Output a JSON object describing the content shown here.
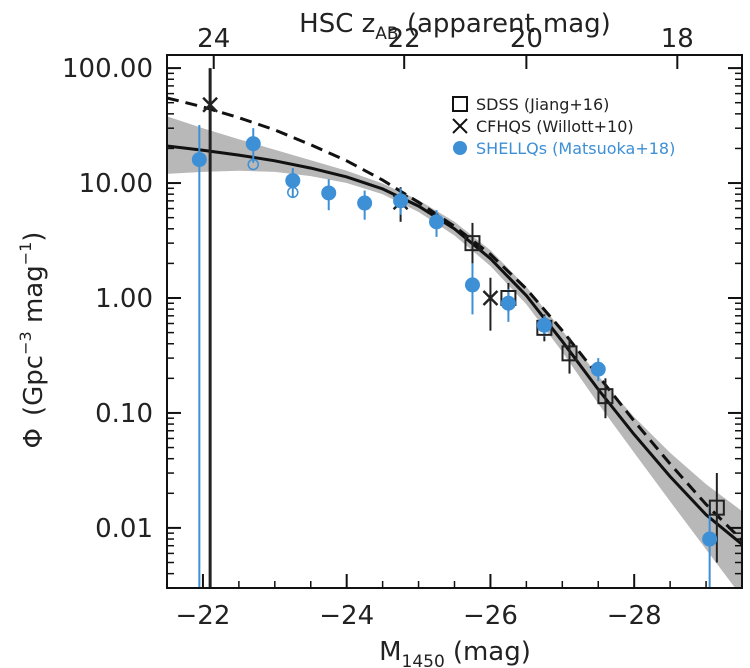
{
  "chart_data": {
    "type": "scatter",
    "x_reversed": true,
    "y_scale": "log",
    "xlim": [
      -21.5,
      -29.5
    ],
    "ylim": [
      0.003,
      130
    ],
    "xlabel_main": "M",
    "xlabel_sub": "1450",
    "xlabel_unit": "(mag)",
    "ylabel_symbol": "Φ",
    "ylabel_unit": "(Gpc",
    "ylabel_exp1": "−3",
    "ylabel_mid": " mag",
    "ylabel_exp2": "−1",
    "ylabel_close": ")",
    "top_axis_label_pre": "HSC z",
    "top_axis_label_sub": "AB",
    "top_axis_label_post": " (apparent mag)",
    "x_ticks": [
      {
        "value": -22,
        "label": "−22"
      },
      {
        "value": -24,
        "label": "−24"
      },
      {
        "value": -26,
        "label": "−26"
      },
      {
        "value": -28,
        "label": "−28"
      }
    ],
    "top_ticks": [
      {
        "value": 24,
        "label": "24",
        "M": -22.15
      },
      {
        "value": 22,
        "label": "22",
        "M": -24.8
      },
      {
        "value": 20,
        "label": "20",
        "M": -26.5
      },
      {
        "value": 18,
        "label": "18",
        "M": -28.6
      }
    ],
    "y_ticks": [
      {
        "value": 100,
        "label": "100.00"
      },
      {
        "value": 10,
        "label": "10.00"
      },
      {
        "value": 1,
        "label": "1.00"
      },
      {
        "value": 0.1,
        "label": "0.10"
      },
      {
        "value": 0.01,
        "label": "0.01"
      }
    ],
    "series": [
      {
        "name": "SDSS (Jiang+16)",
        "marker": "square",
        "color": "#222222",
        "points": [
          {
            "x": -25.75,
            "y": 3.0,
            "ylo": 2.0,
            "yhi": 4.5
          },
          {
            "x": -26.25,
            "y": 1.0,
            "ylo": 0.75,
            "yhi": 1.35
          },
          {
            "x": -26.75,
            "y": 0.55,
            "ylo": 0.42,
            "yhi": 0.72
          },
          {
            "x": -27.1,
            "y": 0.33,
            "ylo": 0.22,
            "yhi": 0.45
          },
          {
            "x": -27.6,
            "y": 0.14,
            "ylo": 0.09,
            "yhi": 0.2
          },
          {
            "x": -29.15,
            "y": 0.015,
            "ylo": 0.005,
            "yhi": 0.03
          }
        ]
      },
      {
        "name": "CFHQS (Willott+10)",
        "marker": "cross",
        "color": "#222222",
        "points": [
          {
            "x": -22.1,
            "y": 48,
            "ylo": 0.003,
            "yhi": 100
          },
          {
            "x": -24.75,
            "y": 6.8,
            "ylo": 4.6,
            "yhi": 9.2
          },
          {
            "x": -26.0,
            "y": 1.0,
            "ylo": 0.52,
            "yhi": 1.5
          }
        ]
      },
      {
        "name": "SHELLQs (Matsuoka+18)",
        "marker": "circle",
        "color": "#3d8fd6",
        "points": [
          {
            "x": -21.95,
            "y": 16,
            "ylo": 0.003,
            "yhi": 32
          },
          {
            "x": -22.7,
            "y": 22,
            "ylo": 15,
            "yhi": 30
          },
          {
            "x": -23.25,
            "y": 10.5,
            "ylo": 7.5,
            "yhi": 13.5
          },
          {
            "x": -23.75,
            "y": 8.2,
            "ylo": 5.8,
            "yhi": 10.8
          },
          {
            "x": -24.25,
            "y": 6.7,
            "ylo": 4.8,
            "yhi": 8.6
          },
          {
            "x": -24.75,
            "y": 7.0,
            "ylo": 5.3,
            "yhi": 9.0
          },
          {
            "x": -25.25,
            "y": 4.6,
            "ylo": 3.4,
            "yhi": 5.8
          },
          {
            "x": -25.75,
            "y": 1.3,
            "ylo": 0.72,
            "yhi": 2.0
          },
          {
            "x": -26.25,
            "y": 0.9,
            "ylo": 0.62,
            "yhi": 1.2
          },
          {
            "x": -26.75,
            "y": 0.58,
            "ylo": 0.46,
            "yhi": 0.7
          },
          {
            "x": -27.5,
            "y": 0.24,
            "ylo": 0.19,
            "yhi": 0.3
          },
          {
            "x": -29.05,
            "y": 0.008,
            "ylo": 0.003,
            "yhi": 0.016
          }
        ]
      }
    ],
    "open_points": [
      {
        "x": -22.7,
        "y": 14.5
      },
      {
        "x": -23.25,
        "y": 8.3
      }
    ],
    "fit_solid": [
      {
        "x": -21.5,
        "y": 21
      },
      {
        "x": -22.0,
        "y": 19.3
      },
      {
        "x": -22.5,
        "y": 17.5
      },
      {
        "x": -23.0,
        "y": 15.6
      },
      {
        "x": -23.5,
        "y": 13.5
      },
      {
        "x": -24.0,
        "y": 11.3
      },
      {
        "x": -24.5,
        "y": 8.9
      },
      {
        "x": -25.0,
        "y": 6.3
      },
      {
        "x": -25.5,
        "y": 4.0
      },
      {
        "x": -26.0,
        "y": 2.2
      },
      {
        "x": -26.5,
        "y": 1.05
      },
      {
        "x": -27.0,
        "y": 0.42
      },
      {
        "x": -27.5,
        "y": 0.16
      },
      {
        "x": -28.0,
        "y": 0.065
      },
      {
        "x": -28.5,
        "y": 0.028
      },
      {
        "x": -29.0,
        "y": 0.013
      },
      {
        "x": -29.5,
        "y": 0.0072
      }
    ],
    "fit_dashed": [
      {
        "x": -21.5,
        "y": 55
      },
      {
        "x": -22.0,
        "y": 46
      },
      {
        "x": -22.5,
        "y": 37
      },
      {
        "x": -23.0,
        "y": 29
      },
      {
        "x": -23.5,
        "y": 21.5
      },
      {
        "x": -24.0,
        "y": 15.6
      },
      {
        "x": -24.5,
        "y": 10.6
      },
      {
        "x": -25.0,
        "y": 6.8
      },
      {
        "x": -25.5,
        "y": 4.2
      },
      {
        "x": -26.0,
        "y": 2.4
      },
      {
        "x": -26.5,
        "y": 1.2
      },
      {
        "x": -27.0,
        "y": 0.52
      },
      {
        "x": -27.5,
        "y": 0.21
      },
      {
        "x": -28.0,
        "y": 0.085
      },
      {
        "x": -28.5,
        "y": 0.036
      },
      {
        "x": -29.0,
        "y": 0.016
      },
      {
        "x": -29.5,
        "y": 0.0078
      }
    ],
    "fit_band": [
      {
        "x": -21.5,
        "ylo": 12,
        "yhi": 38
      },
      {
        "x": -22.0,
        "ylo": 12.5,
        "yhi": 30
      },
      {
        "x": -22.5,
        "ylo": 12.8,
        "yhi": 24
      },
      {
        "x": -23.0,
        "ylo": 12.5,
        "yhi": 19.5
      },
      {
        "x": -23.5,
        "ylo": 11.5,
        "yhi": 15.8
      },
      {
        "x": -24.0,
        "ylo": 10.0,
        "yhi": 12.8
      },
      {
        "x": -24.5,
        "ylo": 8.0,
        "yhi": 9.9
      },
      {
        "x": -25.0,
        "ylo": 5.6,
        "yhi": 7.1
      },
      {
        "x": -25.5,
        "ylo": 3.5,
        "yhi": 4.6
      },
      {
        "x": -26.0,
        "ylo": 1.9,
        "yhi": 2.6
      },
      {
        "x": -26.5,
        "ylo": 0.88,
        "yhi": 1.25
      },
      {
        "x": -27.0,
        "ylo": 0.34,
        "yhi": 0.52
      },
      {
        "x": -27.5,
        "ylo": 0.12,
        "yhi": 0.21
      },
      {
        "x": -28.0,
        "ylo": 0.045,
        "yhi": 0.092
      },
      {
        "x": -28.5,
        "ylo": 0.017,
        "yhi": 0.045
      },
      {
        "x": -29.0,
        "ylo": 0.0065,
        "yhi": 0.024
      },
      {
        "x": -29.5,
        "ylo": 0.0025,
        "yhi": 0.014
      }
    ],
    "colors": {
      "shellqs": "#3d8fd6",
      "black": "#222222",
      "band": "#b8b8b8"
    }
  }
}
